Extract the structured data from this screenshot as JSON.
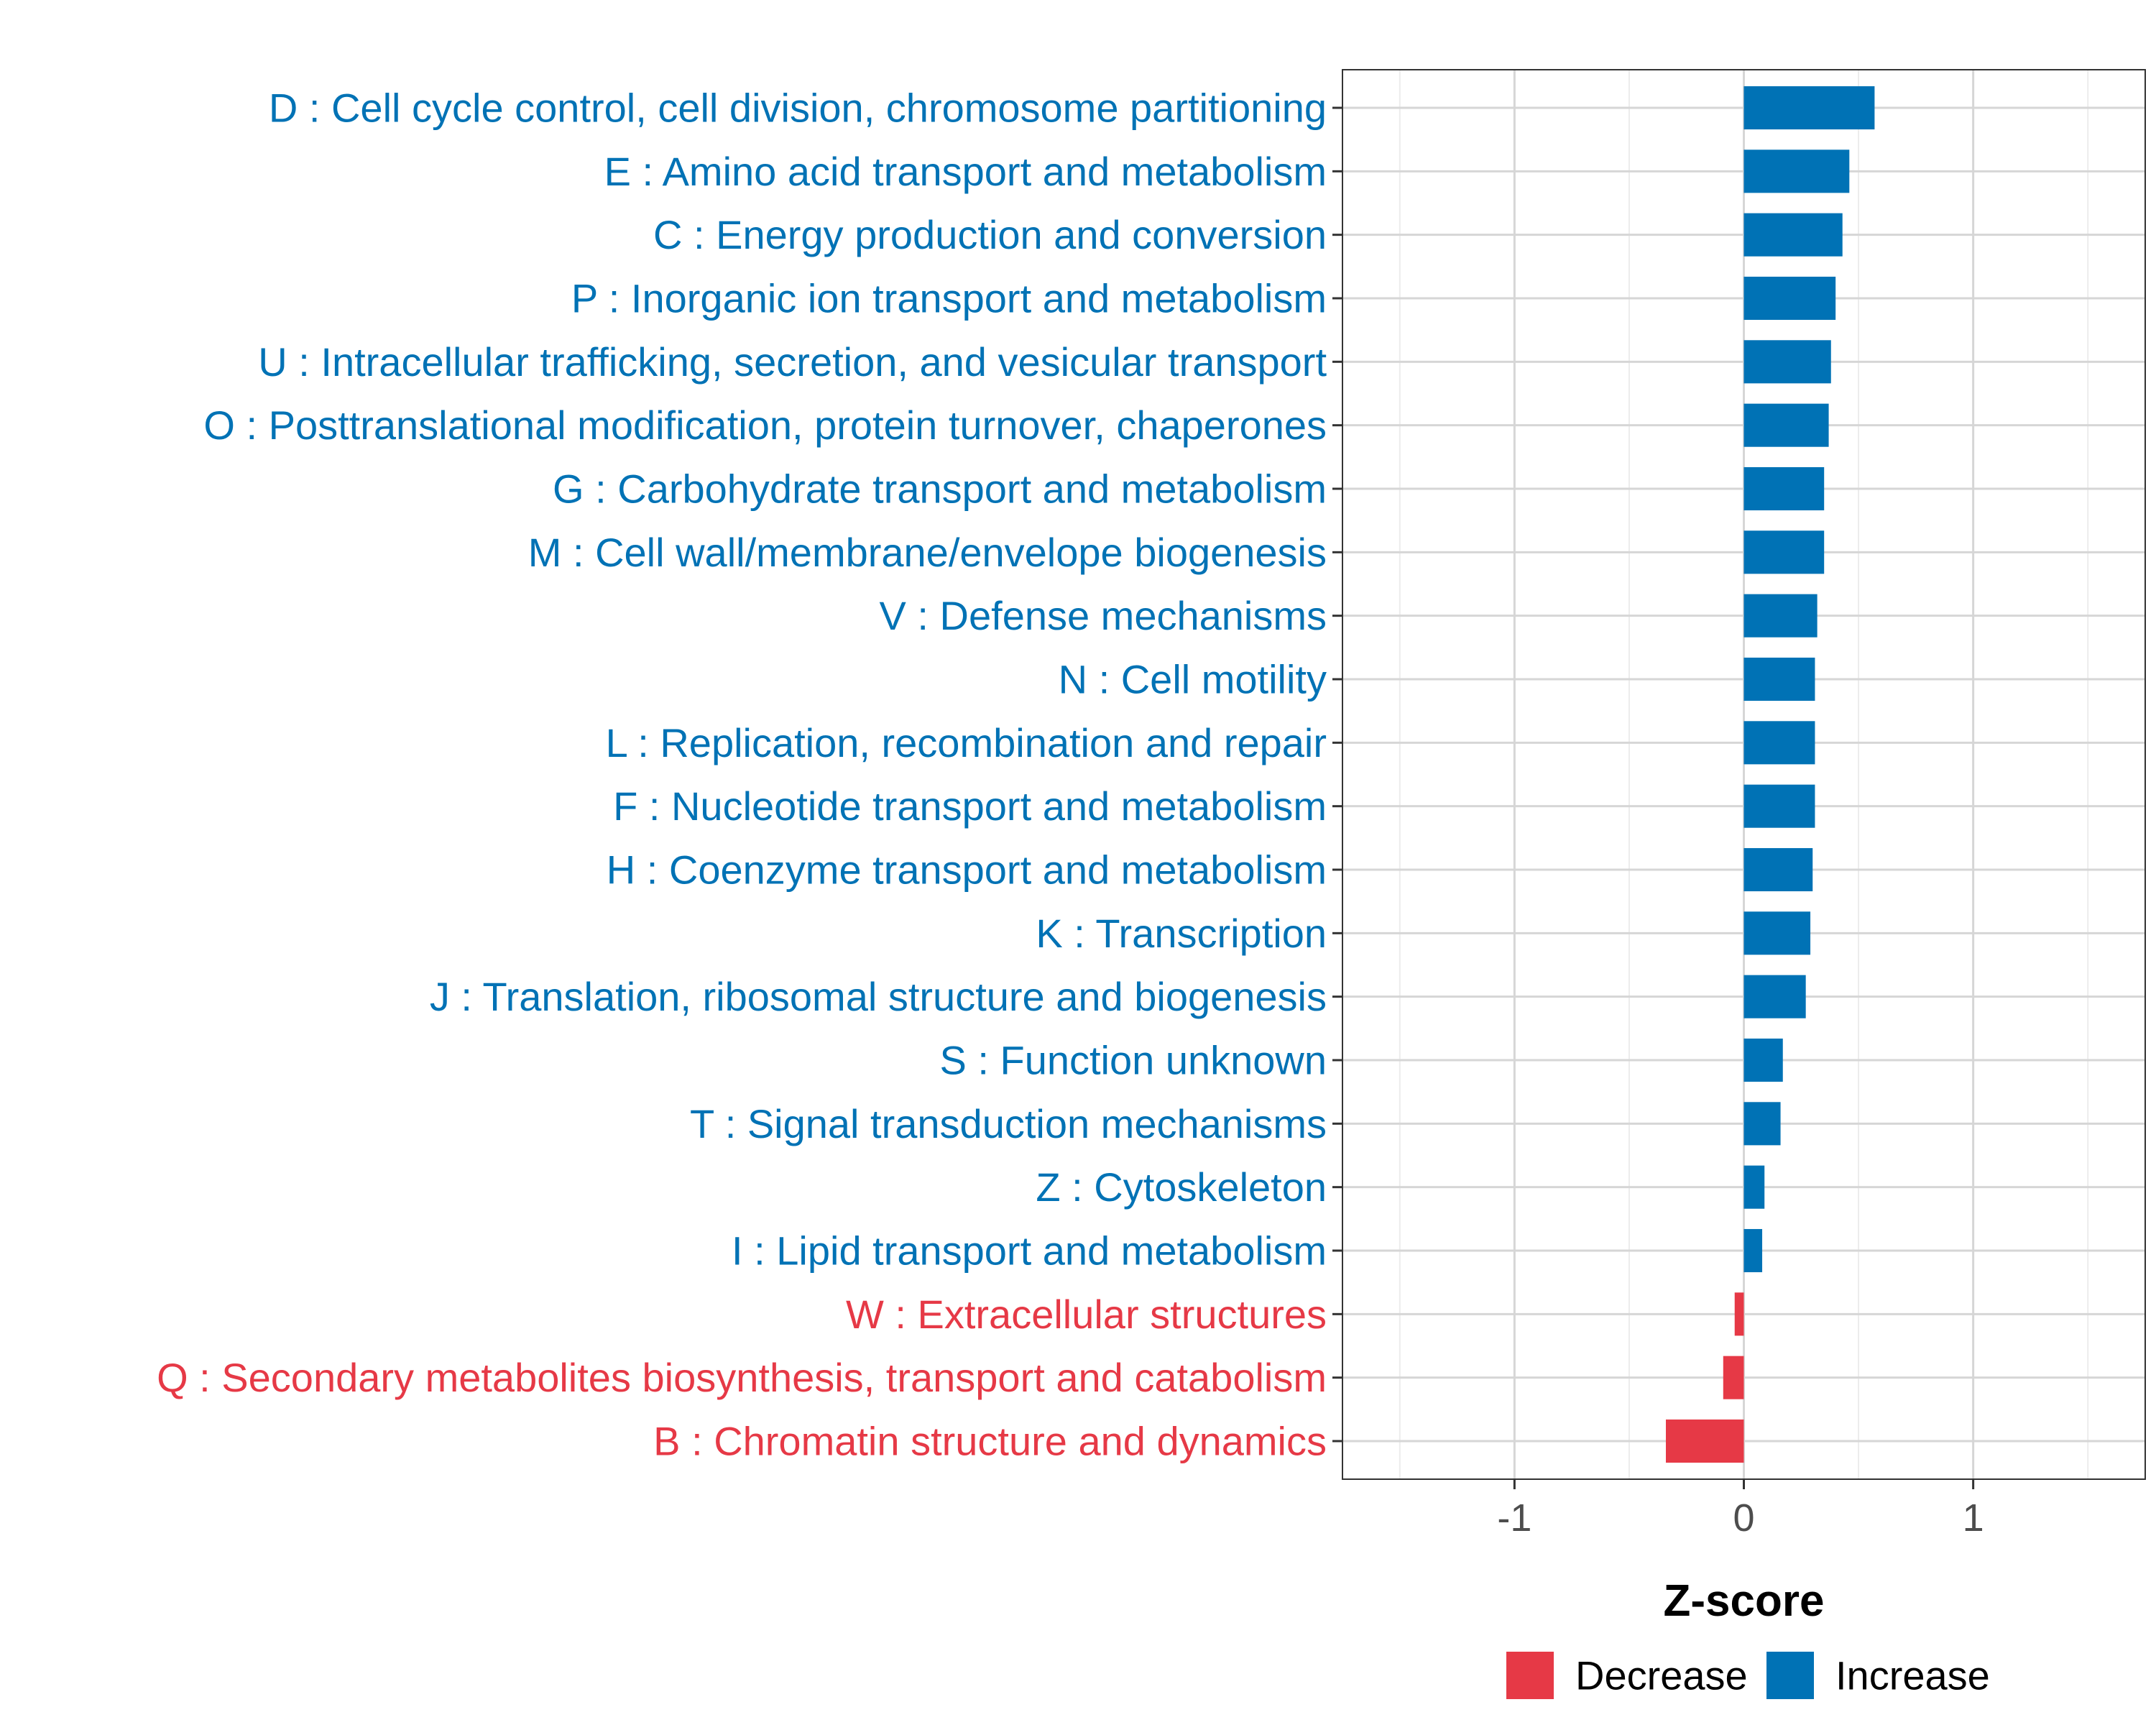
{
  "chart_data": {
    "type": "bar",
    "orientation": "horizontal",
    "xlabel": "Z-score",
    "ylabel": "",
    "xlim": [
      -1.75,
      1.75
    ],
    "xticks": [
      -1,
      0,
      1
    ],
    "xtick_labels": [
      "-1",
      "0",
      "1"
    ],
    "grid": true,
    "legend_position": "bottom",
    "colors": {
      "Increase": "#0072B5",
      "Decrease": "#E63946"
    },
    "legend": [
      {
        "label": "Decrease",
        "color": "#E63946"
      },
      {
        "label": "Increase",
        "color": "#0072B5"
      }
    ],
    "categories": [
      {
        "label": "D : Cell cycle control, cell division, chromosome partitioning",
        "value": 0.57,
        "direction": "Increase"
      },
      {
        "label": "E : Amino acid transport and metabolism",
        "value": 0.46,
        "direction": "Increase"
      },
      {
        "label": "C : Energy production and conversion",
        "value": 0.43,
        "direction": "Increase"
      },
      {
        "label": "P : Inorganic ion transport and metabolism",
        "value": 0.4,
        "direction": "Increase"
      },
      {
        "label": "U : Intracellular trafficking, secretion, and vesicular transport",
        "value": 0.38,
        "direction": "Increase"
      },
      {
        "label": "O : Posttranslational modification, protein turnover, chaperones",
        "value": 0.37,
        "direction": "Increase"
      },
      {
        "label": "G : Carbohydrate transport and metabolism",
        "value": 0.35,
        "direction": "Increase"
      },
      {
        "label": "M : Cell wall/membrane/envelope biogenesis",
        "value": 0.35,
        "direction": "Increase"
      },
      {
        "label": "V : Defense mechanisms",
        "value": 0.32,
        "direction": "Increase"
      },
      {
        "label": "N : Cell motility",
        "value": 0.31,
        "direction": "Increase"
      },
      {
        "label": "L : Replication, recombination and repair",
        "value": 0.31,
        "direction": "Increase"
      },
      {
        "label": "F : Nucleotide transport and metabolism",
        "value": 0.31,
        "direction": "Increase"
      },
      {
        "label": "H : Coenzyme transport and metabolism",
        "value": 0.3,
        "direction": "Increase"
      },
      {
        "label": "K : Transcription",
        "value": 0.29,
        "direction": "Increase"
      },
      {
        "label": "J : Translation, ribosomal structure and biogenesis",
        "value": 0.27,
        "direction": "Increase"
      },
      {
        "label": "S : Function unknown",
        "value": 0.17,
        "direction": "Increase"
      },
      {
        "label": "T : Signal transduction mechanisms",
        "value": 0.16,
        "direction": "Increase"
      },
      {
        "label": "Z : Cytoskeleton",
        "value": 0.09,
        "direction": "Increase"
      },
      {
        "label": "I : Lipid transport and metabolism",
        "value": 0.08,
        "direction": "Increase"
      },
      {
        "label": "W : Extracellular structures",
        "value": -0.04,
        "direction": "Decrease"
      },
      {
        "label": "Q : Secondary metabolites biosynthesis, transport and catabolism",
        "value": -0.09,
        "direction": "Decrease"
      },
      {
        "label": "B : Chromatin structure and dynamics",
        "value": -0.34,
        "direction": "Decrease"
      }
    ]
  }
}
